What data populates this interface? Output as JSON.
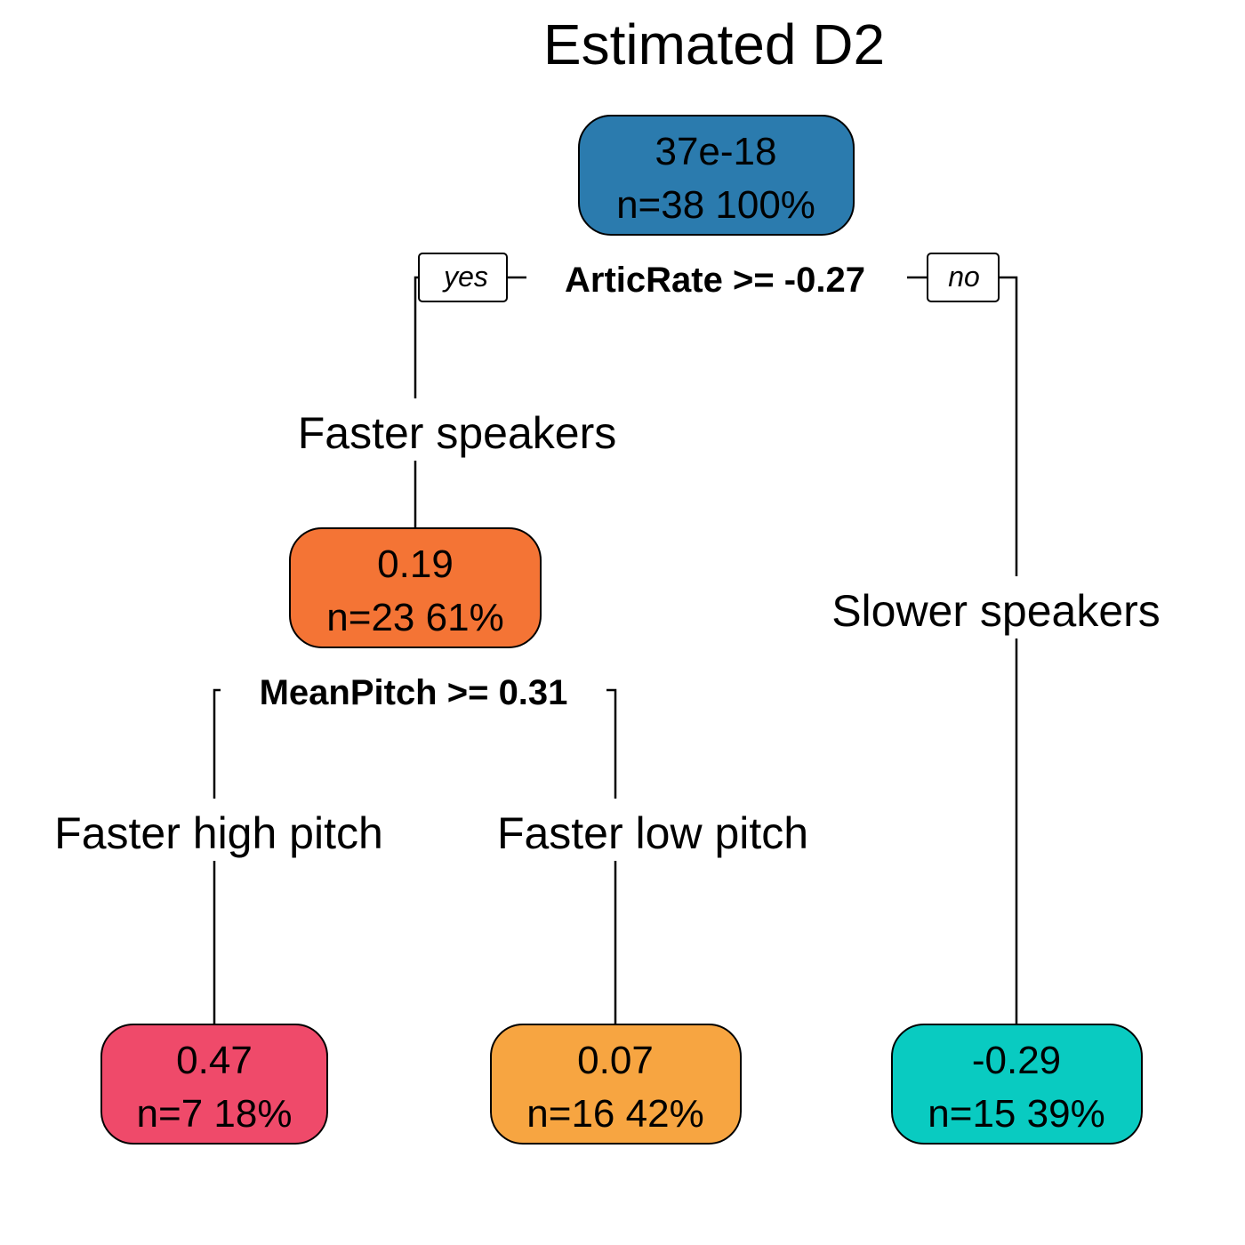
{
  "title": "Estimated D2",
  "colors": {
    "root": "#2b7bae",
    "faster": "#f47435",
    "high_pitch": "#ef4a6a",
    "low_pitch": "#f7a541",
    "slower": "#09cbc1"
  },
  "root": {
    "value": "37e-18",
    "stats": "n=38  100%"
  },
  "root_split": {
    "label": "ArticRate >= -0.27",
    "yes": "yes",
    "no": "no"
  },
  "faster": {
    "branch_label": "Faster speakers",
    "value": "0.19",
    "stats": "n=23  61%"
  },
  "faster_split": {
    "label": "MeanPitch >= 0.31"
  },
  "high_pitch": {
    "branch_label": "Faster high pitch",
    "value": "0.47",
    "stats": "n=7  18%"
  },
  "low_pitch": {
    "branch_label": "Faster low pitch",
    "value": "0.07",
    "stats": "n=16  42%"
  },
  "slower": {
    "branch_label": "Slower speakers",
    "value": "-0.29",
    "stats": "n=15  39%"
  }
}
